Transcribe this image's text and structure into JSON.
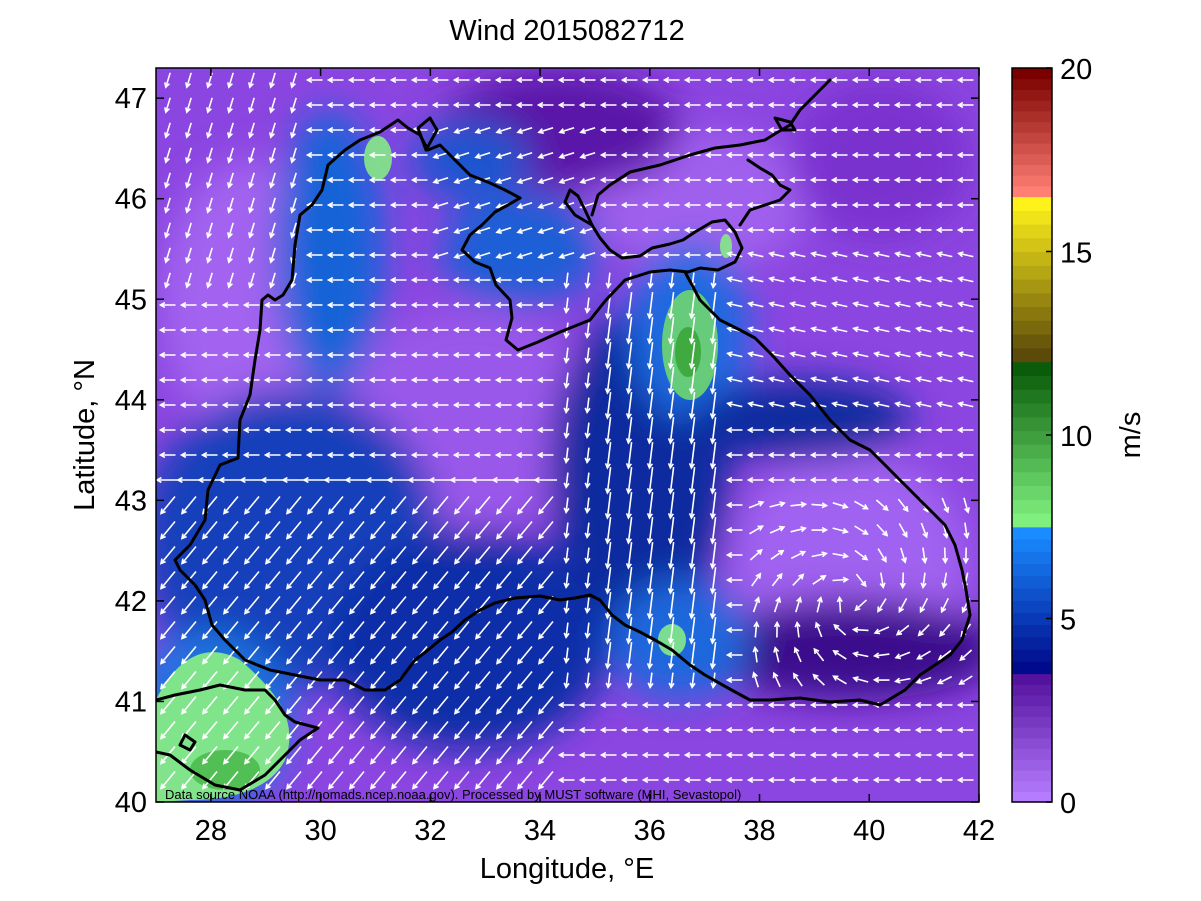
{
  "title": "Wind 2015082712",
  "map": {
    "xlabel": "Longitude, °E",
    "ylabel": "Latitude, °N",
    "xlim": [
      27,
      42
    ],
    "ylim": [
      40,
      47.3
    ],
    "xticks": [
      "28",
      "30",
      "32",
      "34",
      "36",
      "38",
      "40",
      "42"
    ],
    "yticks": [
      "40",
      "41",
      "42",
      "43",
      "44",
      "45",
      "46",
      "47"
    ],
    "source_note": "Data source NOAA (http://nomads.ncep.noaa.gov). Processed by MUST software (MHI, Sevastopol)",
    "arrow_color": "#ffffff",
    "coastline_color": "#000000"
  },
  "colorbar": {
    "label": "m/s",
    "range": [
      0,
      20
    ],
    "ticks": [
      "0",
      "5",
      "10",
      "15",
      "20"
    ],
    "bands": [
      {
        "from": 0,
        "to": 3.5,
        "color_low": "#b57cff",
        "color_high": "#55129e"
      },
      {
        "from": 3.5,
        "to": 7.5,
        "color_low": "#000a8c",
        "color_high": "#1a8cff"
      },
      {
        "from": 7.5,
        "to": 12,
        "color_low": "#7ff07f",
        "color_high": "#0a5c0a"
      },
      {
        "from": 12,
        "to": 16.5,
        "color_low": "#5c4a0a",
        "color_high": "#fff21a"
      },
      {
        "from": 16.5,
        "to": 20,
        "color_low": "#ff7f73",
        "color_high": "#7a0000"
      }
    ]
  }
}
